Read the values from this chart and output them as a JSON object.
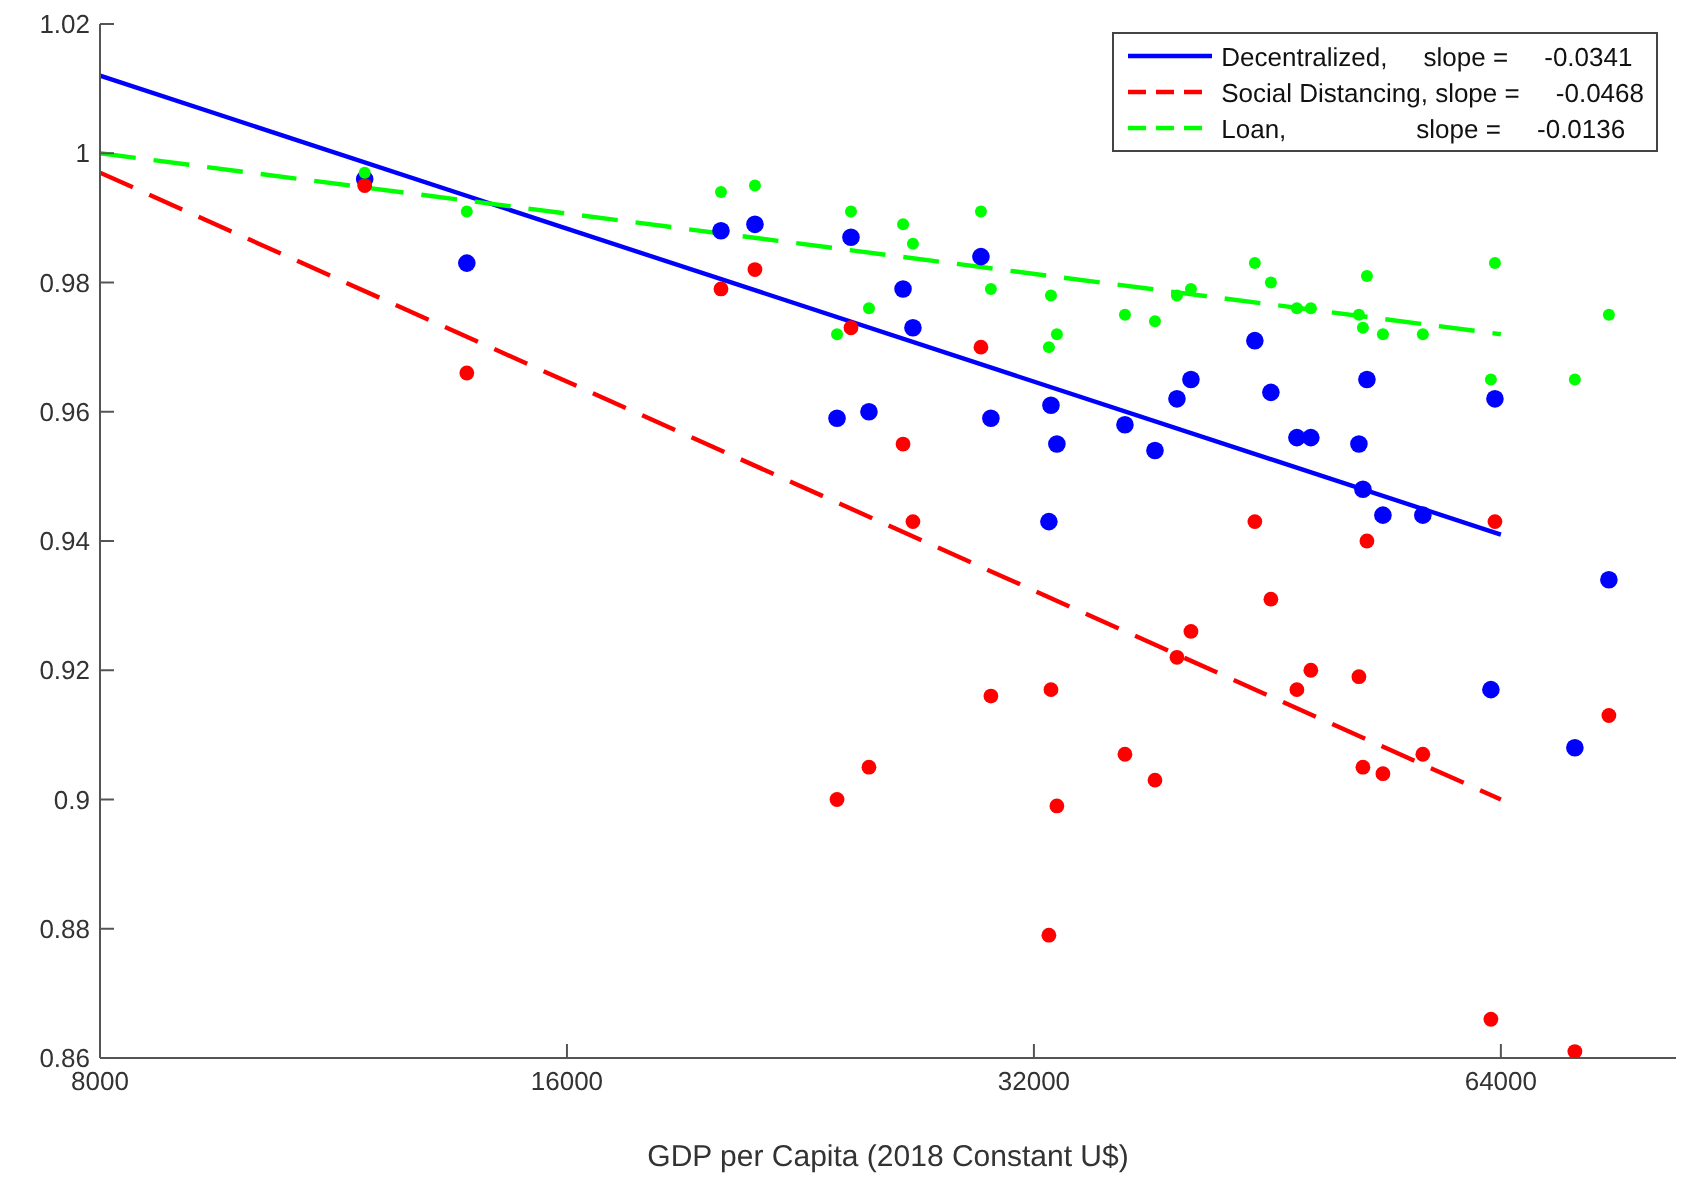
{
  "chart_data": {
    "type": "scatter",
    "xlabel": "GDP per Capita (2018 Constant U$)",
    "log": "x",
    "xlim": [
      8000,
      83000
    ],
    "xticks": [
      8000,
      16000,
      32000,
      64000
    ],
    "ylim": [
      0.86,
      1.02
    ],
    "yticks": [
      0.86,
      0.88,
      0.9,
      0.92,
      0.94,
      0.96,
      0.98,
      1,
      1.02
    ],
    "grid": false,
    "legend": "top right",
    "series": [
      {
        "marker": "circle",
        "color": "#0000ff",
        "x": [
          11850,
          13790,
          20110,
          21150,
          23890,
          24390,
          25050,
          26350,
          26740,
          29580,
          30020,
          32720,
          32820,
          33110,
          36630,
          38300,
          39570,
          40400,
          44420,
          45490,
          47280,
          48270,
          51840,
          52150,
          52460,
          53720,
          57000,
          63060,
          63440,
          71430,
          75130
        ],
        "values": [
          0.996,
          0.983,
          0.988,
          0.989,
          0.959,
          0.987,
          0.96,
          0.979,
          0.973,
          0.984,
          0.959,
          0.943,
          0.961,
          0.955,
          0.958,
          0.954,
          0.962,
          0.965,
          0.971,
          0.963,
          0.956,
          0.956,
          0.955,
          0.948,
          0.965,
          0.944,
          0.944,
          0.917,
          0.962,
          0.908,
          0.934
        ]
      },
      {
        "marker": "circle",
        "color": "#ff0000",
        "x": [
          11850,
          13790,
          20110,
          21150,
          23890,
          24390,
          25050,
          26350,
          26740,
          29580,
          30020,
          32720,
          32820,
          33110,
          36630,
          38300,
          39570,
          40400,
          44420,
          45490,
          47280,
          48270,
          51840,
          52150,
          52460,
          53720,
          57000,
          63060,
          63440,
          71430,
          75130
        ],
        "values": [
          0.995,
          0.966,
          0.979,
          0.982,
          0.9,
          0.973,
          0.905,
          0.955,
          0.943,
          0.97,
          0.916,
          0.879,
          0.917,
          0.899,
          0.907,
          0.903,
          0.922,
          0.926,
          0.943,
          0.931,
          0.917,
          0.92,
          0.919,
          0.905,
          0.94,
          0.904,
          0.907,
          0.866,
          0.943,
          0.861,
          0.913
        ]
      },
      {
        "marker": "circle",
        "color": "#00ff00",
        "x": [
          11850,
          13790,
          20110,
          21150,
          23890,
          24390,
          25050,
          26350,
          26740,
          29580,
          30020,
          32720,
          32820,
          33110,
          36630,
          38300,
          39570,
          40400,
          44420,
          45490,
          47280,
          48270,
          51840,
          52150,
          52460,
          53720,
          57000,
          63060,
          63440,
          71430,
          75130
        ],
        "values": [
          0.997,
          0.991,
          0.994,
          0.995,
          0.972,
          0.991,
          0.976,
          0.989,
          0.986,
          0.991,
          0.979,
          0.97,
          0.978,
          0.972,
          0.975,
          0.974,
          0.978,
          0.979,
          0.983,
          0.98,
          0.976,
          0.976,
          0.975,
          0.973,
          0.981,
          0.972,
          0.972,
          0.965,
          0.983,
          0.965,
          0.975
        ]
      },
      {
        "type": "line",
        "name": "Decentralized,     slope =     -0.0341",
        "color": "#0000ff",
        "line_style": "solid",
        "x": [
          8000,
          64000
        ],
        "values": [
          1.012,
          0.941
        ]
      },
      {
        "type": "line",
        "name": "Social Distancing, slope =     -0.0468",
        "color": "#ff0000",
        "line_style": "dashed",
        "x": [
          8000,
          64000
        ],
        "values": [
          0.997,
          0.9
        ]
      },
      {
        "type": "line",
        "name": "Loan,                  slope =     -0.0136",
        "color": "#00ff00",
        "line_style": "dashed",
        "x": [
          8000,
          64000
        ],
        "values": [
          1.0,
          0.972
        ]
      }
    ]
  }
}
